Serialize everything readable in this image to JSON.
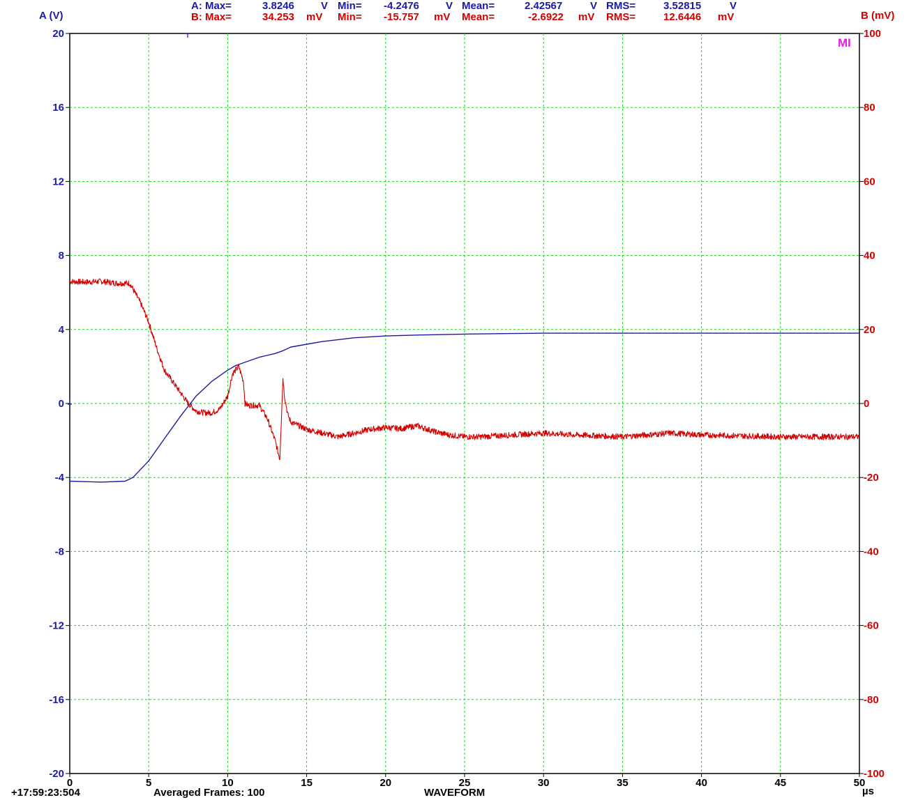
{
  "colors": {
    "channel_a": "#1a1aa6",
    "channel_b": "#d40000",
    "grid": "#22cc22",
    "right_ticks": "#d40000",
    "marker": "#e020e0",
    "footer": "#000000"
  },
  "header": {
    "a": {
      "prefix": "A: Max=",
      "max": "3.8246",
      "max_unit": "V",
      "min_label": "Min=",
      "min": "-4.2476",
      "min_unit": "V",
      "mean_label": "Mean=",
      "mean": "2.42567",
      "mean_unit": "V",
      "rms_label": "RMS=",
      "rms": "3.52815",
      "rms_unit": "V"
    },
    "b": {
      "prefix": "B: Max=",
      "max": "34.253",
      "max_unit": "mV",
      "min_label": "Min=",
      "min": "-15.757",
      "min_unit": "mV",
      "mean_label": "Mean=",
      "mean": "-2.6922",
      "mean_unit": "mV",
      "rms_label": "RMS=",
      "rms": "12.6446",
      "rms_unit": "mV"
    }
  },
  "marker_text": "MI",
  "footer": {
    "timestamp": "+17:59:23:504",
    "averaged": "Averaged Frames: 100",
    "mode": "WAVEFORM"
  },
  "chart_data": {
    "type": "line",
    "title": "",
    "xlabel": "µs",
    "xlim": [
      0,
      50
    ],
    "x_ticks": [
      "0",
      "5",
      "10",
      "15",
      "20",
      "25",
      "30",
      "35",
      "40",
      "45",
      "50"
    ],
    "y_left": {
      "label": "A (V)",
      "lim": [
        -20,
        20
      ],
      "ticks": [
        "20",
        "16",
        "12",
        "8",
        "4",
        "0",
        "-4",
        "-8",
        "-12",
        "-16",
        "-20"
      ]
    },
    "y_right": {
      "label": "B (mV)",
      "lim": [
        -100,
        100
      ],
      "ticks": [
        "100",
        "80",
        "60",
        "40",
        "20",
        "0",
        "-20",
        "-40",
        "-60",
        "-80",
        "-100"
      ]
    },
    "grid": true,
    "series": [
      {
        "axis": "left",
        "x": [
          0,
          2,
          3.5,
          4,
          5,
          6,
          7,
          8,
          9,
          10,
          10.5,
          11,
          12,
          13,
          13.5,
          14,
          15,
          16,
          17,
          18,
          19,
          20,
          22,
          25,
          28,
          30,
          35,
          40,
          45,
          50
        ],
        "y": [
          -4.2,
          -4.25,
          -4.2,
          -4.0,
          -3.1,
          -1.9,
          -0.7,
          0.4,
          1.2,
          1.8,
          2.05,
          2.2,
          2.5,
          2.7,
          2.85,
          3.05,
          3.2,
          3.35,
          3.45,
          3.55,
          3.6,
          3.65,
          3.7,
          3.75,
          3.78,
          3.8,
          3.8,
          3.8,
          3.8,
          3.8
        ]
      },
      {
        "axis": "right",
        "x": [
          0,
          1,
          2,
          3,
          3.8,
          4.5,
          5,
          5.5,
          6,
          6.5,
          7,
          7.5,
          8,
          8.5,
          9,
          9.5,
          10,
          10.3,
          10.7,
          11,
          11.1,
          11.3,
          12,
          12.5,
          13,
          13.3,
          13.5,
          13.6,
          13.8,
          14,
          15,
          16,
          17,
          18,
          19,
          20,
          21,
          22,
          23,
          24,
          25,
          26,
          28,
          30,
          32,
          35,
          38,
          40,
          45,
          50
        ],
        "y": [
          33,
          32.8,
          33,
          32.5,
          32.5,
          27,
          22,
          15,
          9,
          6,
          3,
          0,
          -2,
          -2.5,
          -2.5,
          -1.5,
          2,
          8,
          10,
          6,
          0,
          -0.5,
          -0.5,
          -4,
          -10,
          -15,
          7,
          2,
          -3,
          -5,
          -7,
          -8,
          -9,
          -8,
          -7,
          -6.5,
          -6.8,
          -6,
          -7.5,
          -8.5,
          -9,
          -9,
          -8.5,
          -8,
          -8.5,
          -9,
          -8,
          -8.5,
          -9,
          -9
        ]
      }
    ]
  }
}
